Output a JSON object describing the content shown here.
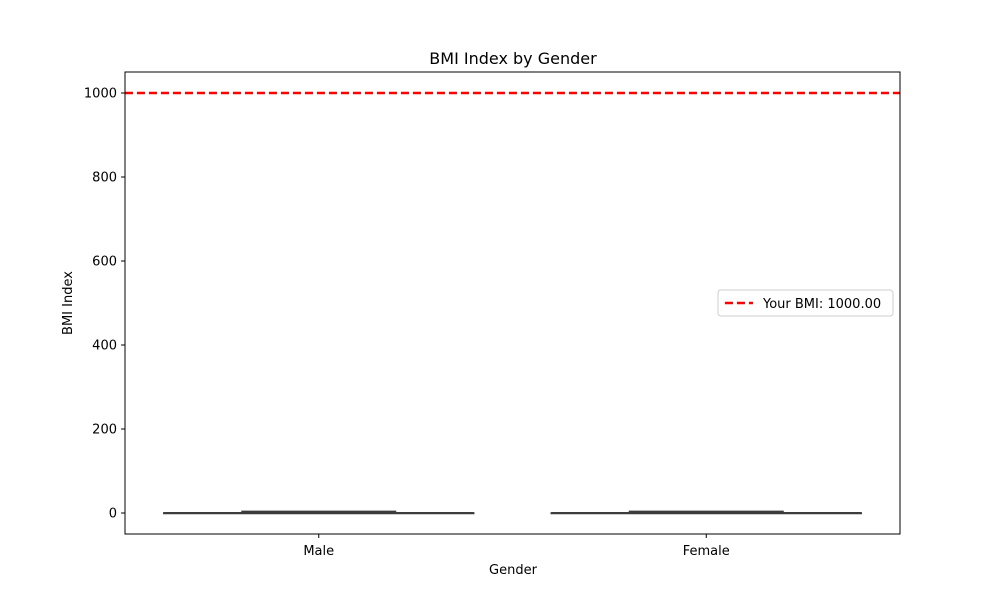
{
  "chart_data": {
    "type": "box",
    "title": "BMI Index by Gender",
    "xlabel": "Gender",
    "ylabel": "BMI Index",
    "categories": [
      "Male",
      "Female"
    ],
    "series": [
      {
        "values": [
          {
            "min": 0,
            "q1": 0,
            "median": 0,
            "q3": 0,
            "max": 4
          },
          {
            "min": 0,
            "q1": 0,
            "median": 0,
            "q3": 0,
            "max": 4
          }
        ],
        "color": "#3d3d3d"
      }
    ],
    "reference_line": {
      "value": 1000,
      "label": "Your BMI: 1000.00",
      "color": "#ff0000",
      "style": "dashed"
    },
    "ylim": [
      -50,
      1050
    ],
    "yticks": [
      0,
      200,
      400,
      600,
      800,
      1000
    ],
    "grid": false,
    "legend": {
      "placement": "center-right",
      "entries": [
        "Your BMI: 1000.00"
      ]
    }
  }
}
